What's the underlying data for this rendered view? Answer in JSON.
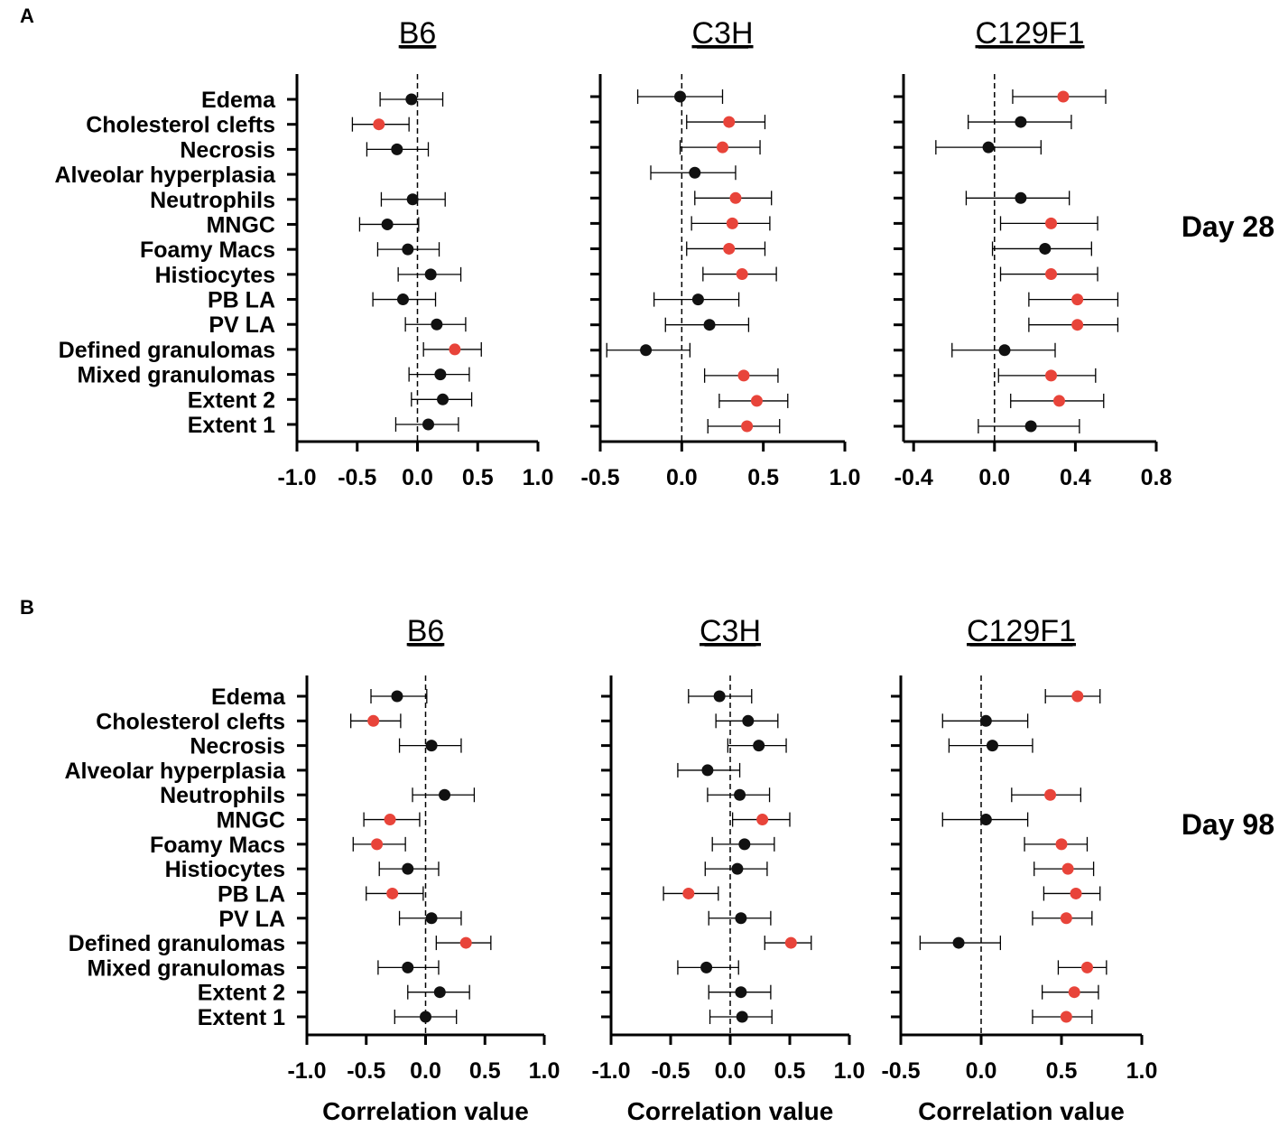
{
  "figure": {
    "panel_labels": [
      "A",
      "B"
    ],
    "day_labels": [
      "Day 28",
      "Day 98"
    ],
    "xlabel": "Correlation value"
  },
  "colors": {
    "significant": "#e8443a",
    "not_significant": "#111111"
  },
  "chart_data": [
    {
      "type": "scatter",
      "panel": "A",
      "title": "B6",
      "xlabel": "",
      "xlim": [
        -1.0,
        1.0
      ],
      "ticks": [
        -1.0,
        -0.5,
        0.0,
        0.5,
        1.0
      ],
      "tick_labels": [
        "-1.0",
        "-0.5",
        "0.0",
        "0.5",
        "1.0"
      ],
      "categories": [
        "Edema",
        "Cholesterol clefts",
        "Necrosis",
        "Alveolar hyperplasia",
        "Neutrophils",
        "MNGC",
        "Foamy Macs",
        "Histiocytes",
        "PB LA",
        "PV LA",
        "Defined granulomas",
        "Mixed granulomas",
        "Extent 2",
        "Extent 1"
      ],
      "points": [
        {
          "v": -0.05,
          "lo": -0.31,
          "hi": 0.21,
          "sig": false
        },
        {
          "v": -0.32,
          "lo": -0.54,
          "hi": -0.07,
          "sig": true
        },
        {
          "v": -0.17,
          "lo": -0.42,
          "hi": 0.09,
          "sig": false
        },
        null,
        {
          "v": -0.04,
          "lo": -0.3,
          "hi": 0.23,
          "sig": false
        },
        {
          "v": -0.25,
          "lo": -0.48,
          "hi": 0.01,
          "sig": false
        },
        {
          "v": -0.08,
          "lo": -0.33,
          "hi": 0.18,
          "sig": false
        },
        {
          "v": 0.11,
          "lo": -0.16,
          "hi": 0.36,
          "sig": false
        },
        {
          "v": -0.12,
          "lo": -0.37,
          "hi": 0.15,
          "sig": false
        },
        {
          "v": 0.16,
          "lo": -0.1,
          "hi": 0.4,
          "sig": false
        },
        {
          "v": 0.31,
          "lo": 0.05,
          "hi": 0.53,
          "sig": true
        },
        {
          "v": 0.19,
          "lo": -0.07,
          "hi": 0.43,
          "sig": false
        },
        {
          "v": 0.21,
          "lo": -0.05,
          "hi": 0.45,
          "sig": false
        },
        {
          "v": 0.09,
          "lo": -0.18,
          "hi": 0.34,
          "sig": false
        }
      ]
    },
    {
      "type": "scatter",
      "panel": "A",
      "title": "C3H",
      "xlabel": "",
      "xlim": [
        -0.5,
        1.0
      ],
      "ticks": [
        -0.5,
        0.0,
        0.5,
        1.0
      ],
      "tick_labels": [
        "-0.5",
        "0.0",
        "0.5",
        "1.0"
      ],
      "categories": [
        "Edema",
        "Cholesterol clefts",
        "Necrosis",
        "Alveolar hyperplasia",
        "Neutrophils",
        "MNGC",
        "Foamy Macs",
        "Histiocytes",
        "PB LA",
        "PV LA",
        "Defined granulomas",
        "Mixed granulomas",
        "Extent 2",
        "Extent 1"
      ],
      "points": [
        {
          "v": -0.01,
          "lo": -0.27,
          "hi": 0.25,
          "sig": false
        },
        {
          "v": 0.29,
          "lo": 0.03,
          "hi": 0.51,
          "sig": true
        },
        {
          "v": 0.25,
          "lo": -0.01,
          "hi": 0.48,
          "sig": true
        },
        {
          "v": 0.08,
          "lo": -0.19,
          "hi": 0.33,
          "sig": false
        },
        {
          "v": 0.33,
          "lo": 0.08,
          "hi": 0.55,
          "sig": true
        },
        {
          "v": 0.31,
          "lo": 0.06,
          "hi": 0.54,
          "sig": true
        },
        {
          "v": 0.29,
          "lo": 0.03,
          "hi": 0.51,
          "sig": true
        },
        {
          "v": 0.37,
          "lo": 0.13,
          "hi": 0.58,
          "sig": true
        },
        {
          "v": 0.1,
          "lo": -0.17,
          "hi": 0.35,
          "sig": false
        },
        {
          "v": 0.17,
          "lo": -0.1,
          "hi": 0.41,
          "sig": false
        },
        {
          "v": -0.22,
          "lo": -0.46,
          "hi": 0.05,
          "sig": false
        },
        {
          "v": 0.38,
          "lo": 0.14,
          "hi": 0.59,
          "sig": true
        },
        {
          "v": 0.46,
          "lo": 0.23,
          "hi": 0.65,
          "sig": true
        },
        {
          "v": 0.4,
          "lo": 0.16,
          "hi": 0.6,
          "sig": true
        }
      ]
    },
    {
      "type": "scatter",
      "panel": "A",
      "title": "C129F1",
      "xlabel": "",
      "xlim": [
        -0.45,
        0.8
      ],
      "ticks": [
        -0.4,
        0.0,
        0.4,
        0.8
      ],
      "tick_labels": [
        "-0.4",
        "0.0",
        "0.4",
        "0.8"
      ],
      "categories": [
        "Edema",
        "Cholesterol clefts",
        "Necrosis",
        "Alveolar hyperplasia",
        "Neutrophils",
        "MNGC",
        "Foamy Macs",
        "Histiocytes",
        "PB LA",
        "PV LA",
        "Defined granulomas",
        "Mixed granulomas",
        "Extent 2",
        "Extent 1"
      ],
      "points": [
        {
          "v": 0.34,
          "lo": 0.09,
          "hi": 0.55,
          "sig": true
        },
        {
          "v": 0.13,
          "lo": -0.13,
          "hi": 0.38,
          "sig": false
        },
        {
          "v": -0.03,
          "lo": -0.29,
          "hi": 0.23,
          "sig": false
        },
        null,
        {
          "v": 0.13,
          "lo": -0.14,
          "hi": 0.37,
          "sig": false
        },
        {
          "v": 0.28,
          "lo": 0.03,
          "hi": 0.51,
          "sig": true
        },
        {
          "v": 0.25,
          "lo": -0.01,
          "hi": 0.48,
          "sig": false
        },
        {
          "v": 0.28,
          "lo": 0.03,
          "hi": 0.51,
          "sig": true
        },
        {
          "v": 0.41,
          "lo": 0.17,
          "hi": 0.61,
          "sig": true
        },
        {
          "v": 0.41,
          "lo": 0.17,
          "hi": 0.61,
          "sig": true
        },
        {
          "v": 0.05,
          "lo": -0.21,
          "hi": 0.3,
          "sig": false
        },
        {
          "v": 0.28,
          "lo": 0.02,
          "hi": 0.5,
          "sig": true
        },
        {
          "v": 0.32,
          "lo": 0.08,
          "hi": 0.54,
          "sig": true
        },
        {
          "v": 0.18,
          "lo": -0.08,
          "hi": 0.42,
          "sig": false
        }
      ]
    },
    {
      "type": "scatter",
      "panel": "B",
      "title": "B6",
      "xlabel": "Correlation value",
      "xlim": [
        -1.0,
        1.0
      ],
      "ticks": [
        -1.0,
        -0.5,
        0.0,
        0.5,
        1.0
      ],
      "tick_labels": [
        "-1.0",
        "-0.5",
        "0.0",
        "0.5",
        "1.0"
      ],
      "categories": [
        "Edema",
        "Cholesterol clefts",
        "Necrosis",
        "Alveolar hyperplasia",
        "Neutrophils",
        "MNGC",
        "Foamy Macs",
        "Histiocytes",
        "PB LA",
        "PV LA",
        "Defined granulomas",
        "Mixed granulomas",
        "Extent 2",
        "Extent 1"
      ],
      "points": [
        {
          "v": -0.24,
          "lo": -0.46,
          "hi": 0.01,
          "sig": false
        },
        {
          "v": -0.44,
          "lo": -0.63,
          "hi": -0.21,
          "sig": true
        },
        {
          "v": 0.05,
          "lo": -0.22,
          "hi": 0.3,
          "sig": false
        },
        null,
        {
          "v": 0.16,
          "lo": -0.11,
          "hi": 0.41,
          "sig": false
        },
        {
          "v": -0.3,
          "lo": -0.52,
          "hi": -0.05,
          "sig": true
        },
        {
          "v": -0.41,
          "lo": -0.61,
          "hi": -0.17,
          "sig": true
        },
        {
          "v": -0.15,
          "lo": -0.39,
          "hi": 0.11,
          "sig": false
        },
        {
          "v": -0.28,
          "lo": -0.5,
          "hi": -0.02,
          "sig": true
        },
        {
          "v": 0.05,
          "lo": -0.22,
          "hi": 0.3,
          "sig": false
        },
        {
          "v": 0.34,
          "lo": 0.09,
          "hi": 0.55,
          "sig": true
        },
        {
          "v": -0.15,
          "lo": -0.4,
          "hi": 0.11,
          "sig": false
        },
        {
          "v": 0.12,
          "lo": -0.15,
          "hi": 0.37,
          "sig": false
        },
        {
          "v": 0.0,
          "lo": -0.26,
          "hi": 0.26,
          "sig": false
        }
      ]
    },
    {
      "type": "scatter",
      "panel": "B",
      "title": "C3H",
      "xlabel": "Correlation value",
      "xlim": [
        -1.0,
        1.0
      ],
      "ticks": [
        -1.0,
        -0.5,
        0.0,
        0.5,
        1.0
      ],
      "tick_labels": [
        "-1.0",
        "-0.5",
        "0.0",
        "0.5",
        "1.0"
      ],
      "categories": [
        "Edema",
        "Cholesterol clefts",
        "Necrosis",
        "Alveolar hyperplasia",
        "Neutrophils",
        "MNGC",
        "Foamy Macs",
        "Histiocytes",
        "PB LA",
        "PV LA",
        "Defined granulomas",
        "Mixed granulomas",
        "Extent 2",
        "Extent 1"
      ],
      "points": [
        {
          "v": -0.09,
          "lo": -0.35,
          "hi": 0.18,
          "sig": false
        },
        {
          "v": 0.15,
          "lo": -0.12,
          "hi": 0.4,
          "sig": false
        },
        {
          "v": 0.24,
          "lo": -0.02,
          "hi": 0.47,
          "sig": false
        },
        {
          "v": -0.19,
          "lo": -0.44,
          "hi": 0.08,
          "sig": false
        },
        {
          "v": 0.08,
          "lo": -0.19,
          "hi": 0.33,
          "sig": false
        },
        {
          "v": 0.27,
          "lo": 0.02,
          "hi": 0.5,
          "sig": true
        },
        {
          "v": 0.12,
          "lo": -0.15,
          "hi": 0.37,
          "sig": false
        },
        {
          "v": 0.06,
          "lo": -0.21,
          "hi": 0.31,
          "sig": false
        },
        {
          "v": -0.35,
          "lo": -0.56,
          "hi": -0.1,
          "sig": true
        },
        {
          "v": 0.09,
          "lo": -0.18,
          "hi": 0.34,
          "sig": false
        },
        {
          "v": 0.51,
          "lo": 0.29,
          "hi": 0.68,
          "sig": true
        },
        {
          "v": -0.2,
          "lo": -0.44,
          "hi": 0.07,
          "sig": false
        },
        {
          "v": 0.09,
          "lo": -0.18,
          "hi": 0.34,
          "sig": false
        },
        {
          "v": 0.1,
          "lo": -0.17,
          "hi": 0.35,
          "sig": false
        }
      ]
    },
    {
      "type": "scatter",
      "panel": "B",
      "title": "C129F1",
      "xlabel": "Correlation value",
      "xlim": [
        -0.5,
        1.0
      ],
      "ticks": [
        -0.5,
        0.0,
        0.5,
        1.0
      ],
      "tick_labels": [
        "-0.5",
        "0.0",
        "0.5",
        "1.0"
      ],
      "categories": [
        "Edema",
        "Cholesterol clefts",
        "Necrosis",
        "Alveolar hyperplasia",
        "Neutrophils",
        "MNGC",
        "Foamy Macs",
        "Histiocytes",
        "PB LA",
        "PV LA",
        "Defined granulomas",
        "Mixed granulomas",
        "Extent 2",
        "Extent 1"
      ],
      "points": [
        {
          "v": 0.6,
          "lo": 0.4,
          "hi": 0.74,
          "sig": true
        },
        {
          "v": 0.03,
          "lo": -0.24,
          "hi": 0.29,
          "sig": false
        },
        {
          "v": 0.07,
          "lo": -0.2,
          "hi": 0.32,
          "sig": false
        },
        null,
        {
          "v": 0.43,
          "lo": 0.19,
          "hi": 0.62,
          "sig": true
        },
        {
          "v": 0.03,
          "lo": -0.24,
          "hi": 0.29,
          "sig": false
        },
        {
          "v": 0.5,
          "lo": 0.27,
          "hi": 0.66,
          "sig": true
        },
        {
          "v": 0.54,
          "lo": 0.33,
          "hi": 0.7,
          "sig": true
        },
        {
          "v": 0.59,
          "lo": 0.39,
          "hi": 0.74,
          "sig": true
        },
        {
          "v": 0.53,
          "lo": 0.32,
          "hi": 0.69,
          "sig": true
        },
        {
          "v": -0.14,
          "lo": -0.38,
          "hi": 0.12,
          "sig": false
        },
        {
          "v": 0.66,
          "lo": 0.48,
          "hi": 0.78,
          "sig": true
        },
        {
          "v": 0.58,
          "lo": 0.38,
          "hi": 0.73,
          "sig": true
        },
        {
          "v": 0.53,
          "lo": 0.32,
          "hi": 0.69,
          "sig": true
        }
      ]
    }
  ]
}
